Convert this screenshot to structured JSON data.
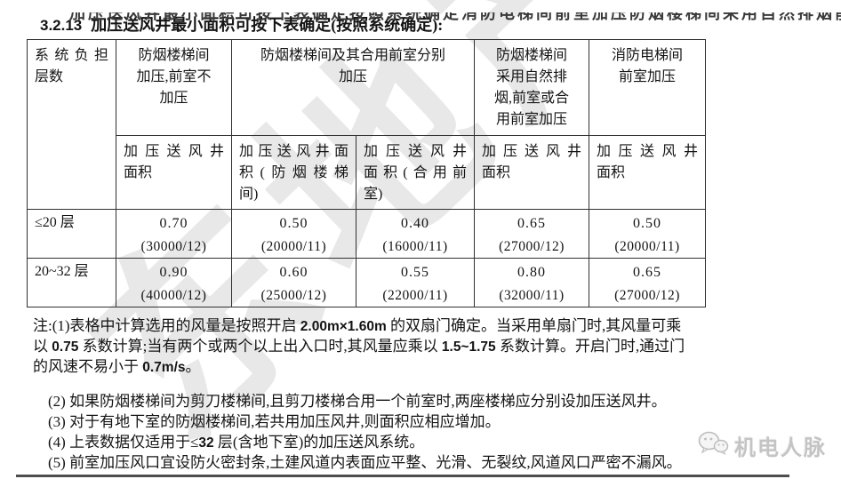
{
  "top_clipped_text": "加压送风井最小面积可按下表确定按照系统确定消防电梯间前室加压防烟楼梯间采用自然排烟前室或合用前室加压送风井面积",
  "heading": {
    "number": "3.2.13",
    "text": "加压送风井最小面积可按下表确定(按照系统确定):"
  },
  "table": {
    "header_row1": {
      "col1_lines": [
        "系统负担",
        "层数"
      ],
      "col2_lines": [
        "防烟楼梯间",
        "加压,前室不",
        "加压"
      ],
      "col3_lines": [
        "防烟楼梯间及其合用前室分别",
        "加压"
      ],
      "col4_lines": [
        "防烟楼梯间",
        "采用自然排",
        "烟,前室或合",
        "用前室加压"
      ],
      "col5_lines": [
        "消防电梯间",
        "前室加压"
      ]
    },
    "header_row2": {
      "col1_lines": [
        "加压送风井",
        "面积"
      ],
      "col2_lines": [
        "加压送风井面",
        "积(防烟楼梯",
        "间)"
      ],
      "col3_lines": [
        "加压送风井",
        "面积(合用前",
        "室)"
      ],
      "col4_lines": [
        "加压送风井",
        "面积"
      ],
      "col5_lines": [
        "加压送风井",
        "面积"
      ]
    },
    "rows": [
      {
        "label": "≤20 层",
        "cells": [
          {
            "area": "0.70",
            "flow": "(30000/12)"
          },
          {
            "area": "0.50",
            "flow": "(20000/11)"
          },
          {
            "area": "0.40",
            "flow": "(16000/11)"
          },
          {
            "area": "0.65",
            "flow": "(27000/12)"
          },
          {
            "area": "0.50",
            "flow": "(20000/11)"
          }
        ]
      },
      {
        "label": "20~32 层",
        "cells": [
          {
            "area": "0.90",
            "flow": "(40000/12)"
          },
          {
            "area": "0.60",
            "flow": "(25000/12)"
          },
          {
            "area": "0.55",
            "flow": "(22000/11)"
          },
          {
            "area": "0.80",
            "flow": "(32000/11)"
          },
          {
            "area": "0.65",
            "flow": "(27000/12)"
          }
        ]
      }
    ]
  },
  "notes": [
    {
      "lines": [
        [
          {
            "t": "注:(1)表格中计算选用的风量是按照开启 "
          },
          {
            "t": "2.00m×1.60m",
            "b": true
          },
          {
            "t": " 的双扇门确定。当采用单扇门时,其风量可乘"
          }
        ],
        [
          {
            "t": "以 "
          },
          {
            "t": "0.75",
            "b": true
          },
          {
            "t": " 系数计算;当有两个或两个以上出入口时,其风量应乘以 "
          },
          {
            "t": "1.5~1.75",
            "b": true
          },
          {
            "t": " 系数计算。开启门时,通过门"
          }
        ],
        [
          {
            "t": "的风速不易小于 "
          },
          {
            "t": "0.7m/s",
            "b": true
          },
          {
            "t": "。"
          }
        ]
      ]
    },
    {
      "extra_gap": true,
      "indent": true,
      "lines": [
        [
          {
            "t": "(2) 如果防烟楼梯间为剪刀楼梯间,且剪刀楼梯合用一个前室时,两座楼梯应分别设加压送风井。"
          }
        ]
      ]
    },
    {
      "indent": true,
      "lines": [
        [
          {
            "t": "(3) 对于有地下室的防烟楼梯间,若共用加压风井,则面积应相应增加。"
          }
        ]
      ]
    },
    {
      "indent": true,
      "lines": [
        [
          {
            "t": "(4) 上表数据仅适用于≤"
          },
          {
            "t": "32",
            "b": true
          },
          {
            "t": " 层(含地下室)的加压送风系统。"
          }
        ]
      ]
    },
    {
      "indent": true,
      "lines": [
        [
          {
            "t": "(5) 前室加压风口宜设防火密封条,土建风道内表面应平整、光滑、无裂纹,风道风口严密不漏风。"
          }
        ]
      ]
    }
  ],
  "logo": {
    "label": "机电人脉"
  },
  "watermark": {
    "text": "东地产"
  },
  "colors": {
    "text": "#141414",
    "border": "#303030",
    "watermark_gray": "#969696",
    "logo_gray": "#c4c4c4"
  }
}
